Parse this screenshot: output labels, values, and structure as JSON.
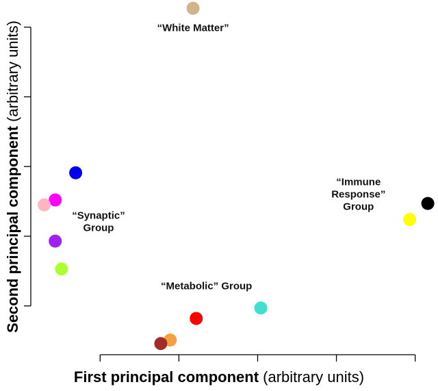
{
  "chart_data": {
    "type": "scatter",
    "xlabel": "First principal component",
    "xlabel_units": "(arbitrary units)",
    "ylabel": "Second principal component",
    "ylabel_units": "(arbitrary units)",
    "xlim": [
      0.12,
      5.22
    ],
    "ylim": [
      -0.7,
      4.35
    ],
    "x_ticks": [
      1,
      2,
      3,
      4,
      5
    ],
    "y_ticks": [
      0,
      1,
      2,
      3,
      4
    ],
    "grid": false,
    "points": [
      {
        "x": 2.18,
        "y": 4.27,
        "color": "#D2B48C"
      },
      {
        "x": 0.69,
        "y": 1.91,
        "color": "#0000EE"
      },
      {
        "x": 0.43,
        "y": 1.52,
        "color": "#FF00FF"
      },
      {
        "x": 0.29,
        "y": 1.45,
        "color": "#FFB6C1"
      },
      {
        "x": 0.43,
        "y": 0.93,
        "color": "#A020F0"
      },
      {
        "x": 0.51,
        "y": 0.53,
        "color": "#ADFF2F"
      },
      {
        "x": 5.16,
        "y": 1.47,
        "color": "#000000"
      },
      {
        "x": 4.93,
        "y": 1.24,
        "color": "#FFFF00"
      },
      {
        "x": 3.04,
        "y": -0.03,
        "color": "#40E0D0"
      },
      {
        "x": 2.22,
        "y": -0.18,
        "color": "#FF0000"
      },
      {
        "x": 1.89,
        "y": -0.49,
        "color": "#F4A040"
      },
      {
        "x": 1.77,
        "y": -0.54,
        "color": "#A52A2A"
      }
    ],
    "annotations": [
      {
        "x": 2.18,
        "y": 3.94,
        "lines": [
          "“White Matter”"
        ]
      },
      {
        "x": 0.98,
        "y": 1.25,
        "lines": [
          "“Synaptic”",
          "Group"
        ]
      },
      {
        "x": 2.35,
        "y": 0.24,
        "lines": [
          "“Metabolic” Group"
        ]
      },
      {
        "x": 4.28,
        "y": 1.73,
        "lines": [
          "“Immune",
          "Response”",
          "Group"
        ]
      }
    ]
  }
}
